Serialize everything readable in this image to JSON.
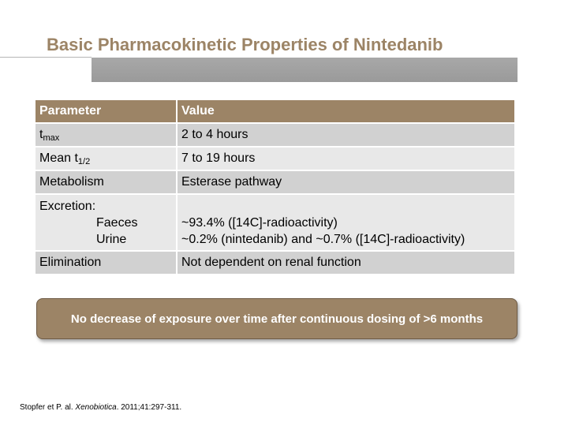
{
  "slide": {
    "title": "Basic Pharmacokinetic Properties of Nintedanib",
    "accent_color": "#9c8466"
  },
  "table": {
    "headers": [
      "Parameter",
      "Value"
    ],
    "rows": [
      {
        "param_main": "t",
        "param_sub": "max",
        "value": "2 to 4 hours"
      },
      {
        "param_main": "Mean t",
        "param_sub": "1/2",
        "value": "7 to 19 hours"
      },
      {
        "param_main": "Metabolism",
        "value": "Esterase pathway"
      },
      {
        "param_main": "Excretion:",
        "param_lines": [
          "Faeces",
          "Urine"
        ],
        "value_lines": [
          "~93.4% ([14C]-radioactivity)",
          "~0.2% (nintedanib) and ~0.7% ([14C]-radioactivity)"
        ]
      },
      {
        "param_main": "Elimination",
        "value": "Not dependent on renal function"
      }
    ]
  },
  "callout": {
    "text": "No decrease of exposure over time after continuous dosing of >6 months"
  },
  "footer": {
    "citation_prefix": "Stopfer et P. al. ",
    "journal": "Xenobiotica",
    "citation_suffix": ". 2011;41:297-311."
  }
}
